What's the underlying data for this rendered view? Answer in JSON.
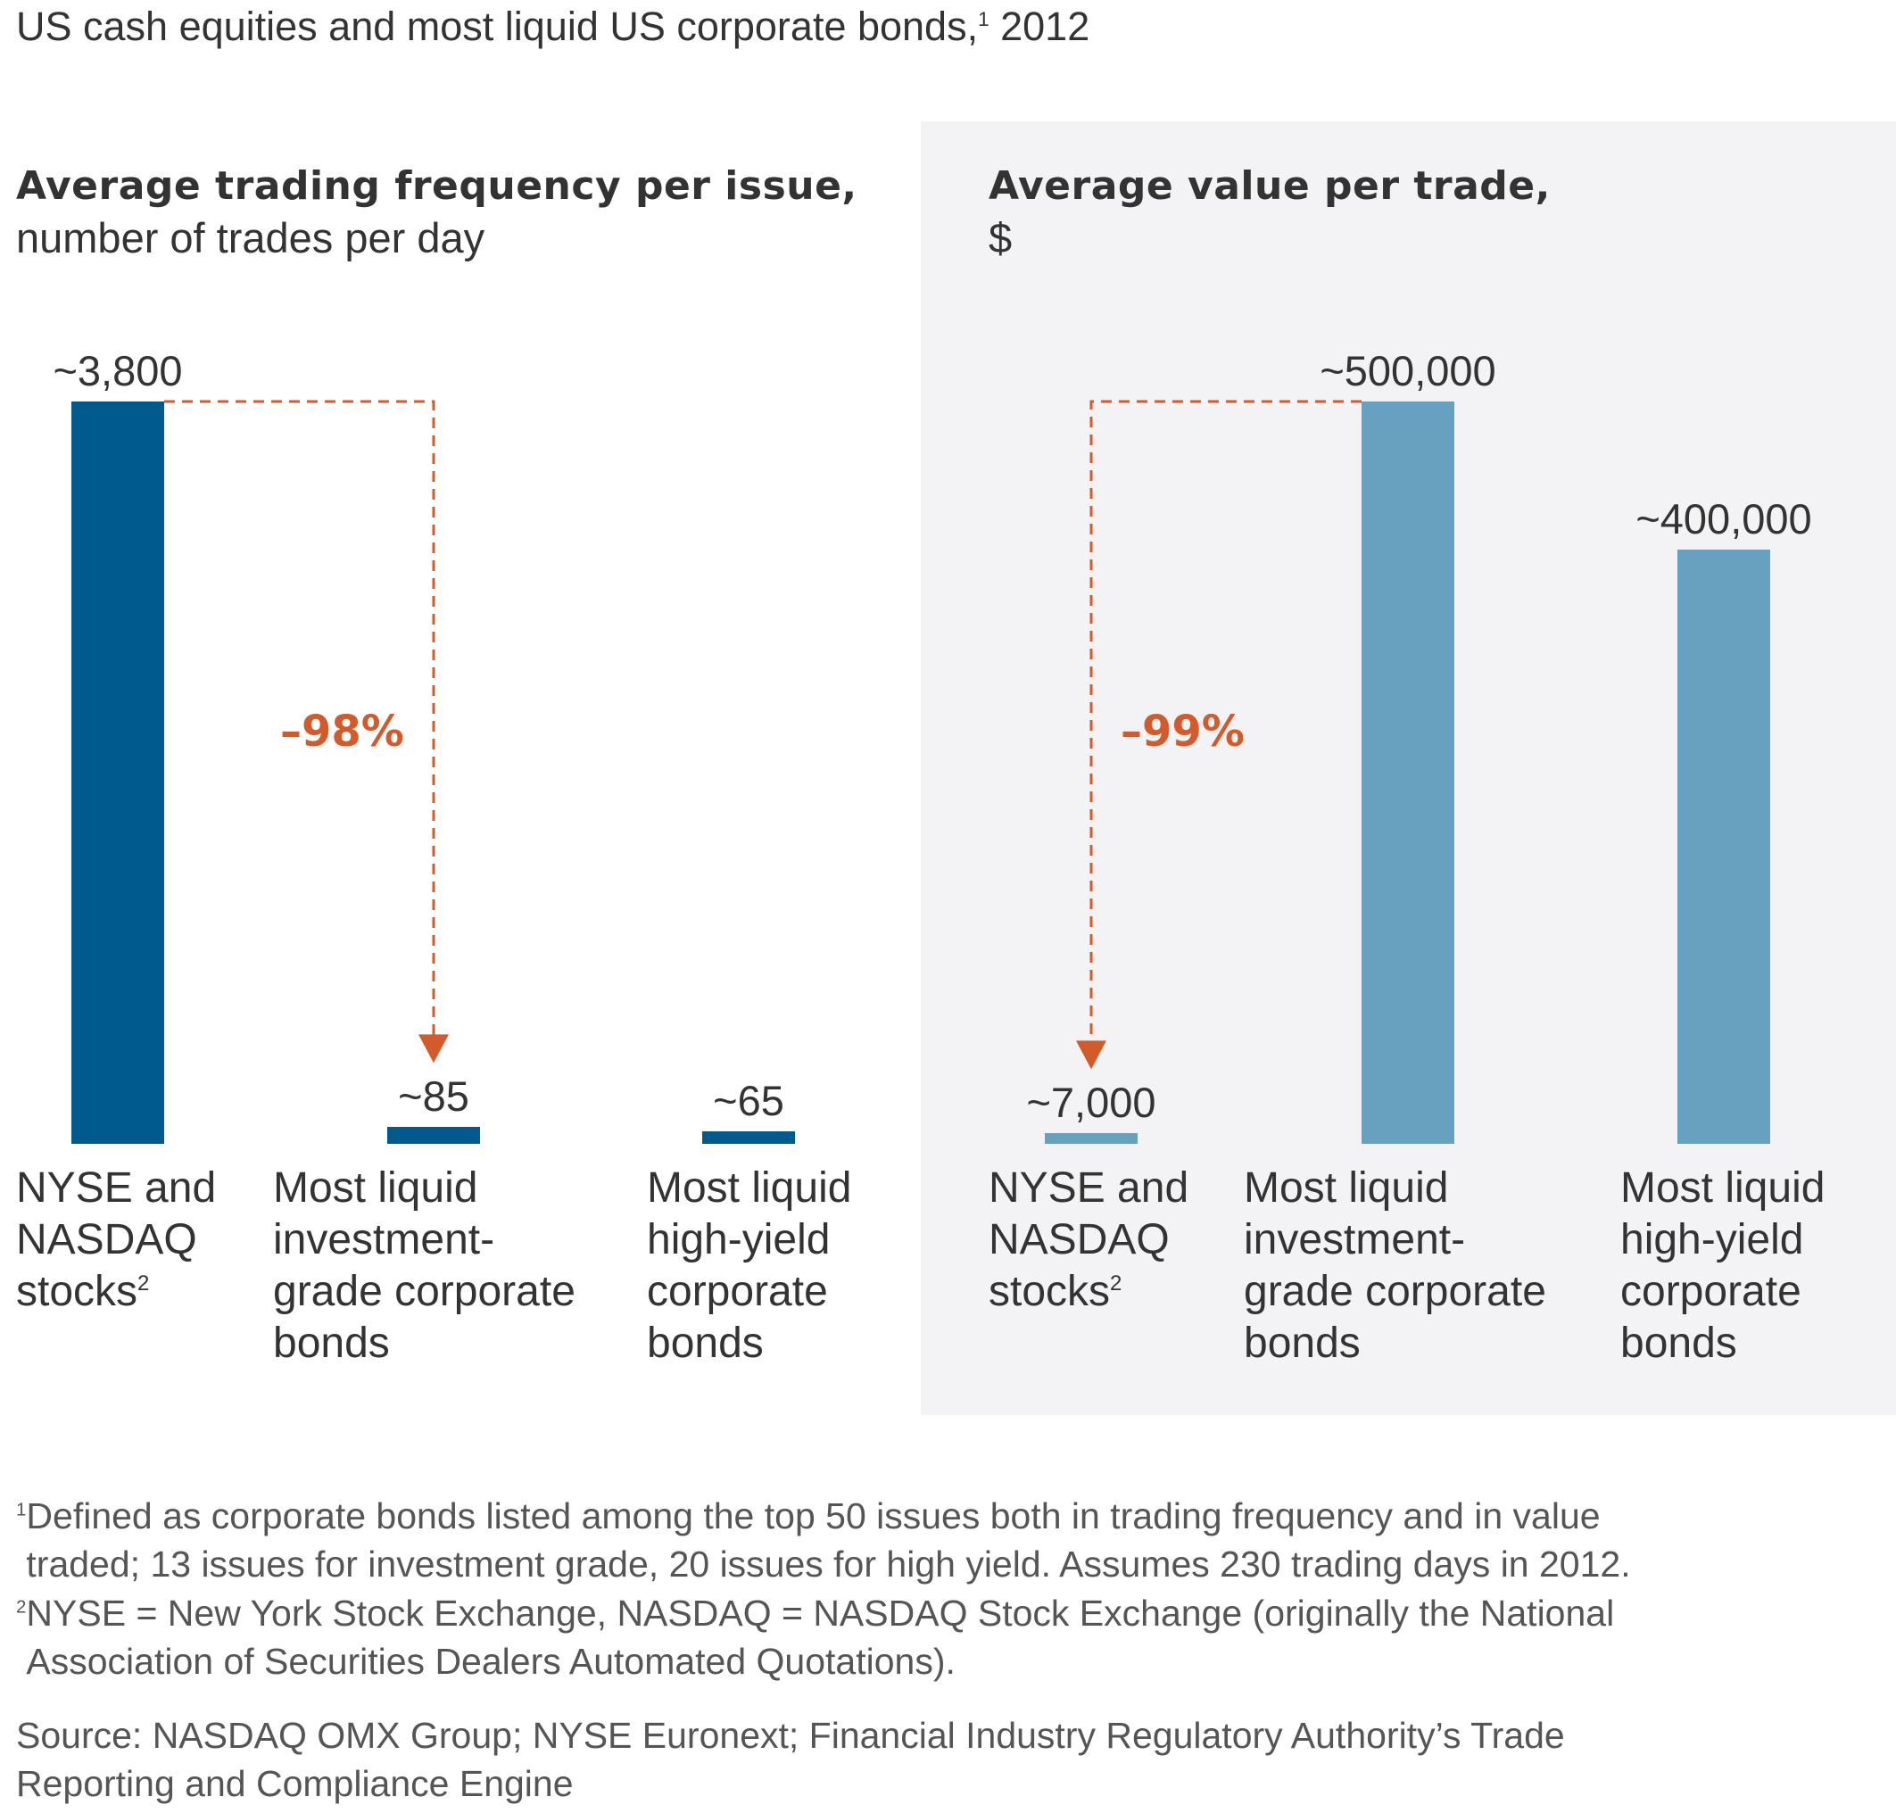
{
  "title": {
    "text": "US cash equities and most liquid US corporate bonds,",
    "footnote_ref": "1",
    "year": "2012"
  },
  "colors": {
    "left_bars": "#005a8c",
    "right_bars": "#67a1c0",
    "annotation": "#d35a2a",
    "panel_bg": "#f3f3f5"
  },
  "chart_data": [
    {
      "type": "bar",
      "title": "Average trading frequency per issue,",
      "subtitle": "number of trades per day",
      "categories": [
        "NYSE and NASDAQ stocks",
        "Most liquid investment-grade corporate bonds",
        "Most liquid high-yield corporate bonds"
      ],
      "category_lines": [
        [
          "NYSE and",
          "NASDAQ",
          "stocks"
        ],
        [
          "Most liquid",
          "investment-",
          "grade corporate",
          "bonds"
        ],
        [
          "Most liquid",
          "high-yield",
          "corporate",
          "bonds"
        ]
      ],
      "category_footnote": "2",
      "values": [
        3800,
        85,
        65
      ],
      "data_labels": [
        "~3,800",
        "~85",
        "~65"
      ],
      "annotation": {
        "text": "–98%",
        "from": 0,
        "to": 1
      },
      "ylim": [
        0,
        3800
      ]
    },
    {
      "type": "bar",
      "title": "Average value per trade,",
      "subtitle": "$",
      "categories": [
        "NYSE and NASDAQ stocks",
        "Most liquid investment-grade corporate bonds",
        "Most liquid high-yield corporate bonds"
      ],
      "category_lines": [
        [
          "NYSE and",
          "NASDAQ",
          "stocks"
        ],
        [
          "Most liquid",
          "investment-",
          "grade corporate",
          "bonds"
        ],
        [
          "Most liquid",
          "high-yield",
          "corporate",
          "bonds"
        ]
      ],
      "category_footnote": "2",
      "values": [
        7000,
        500000,
        400000
      ],
      "data_labels": [
        "~7,000",
        "~500,000",
        "~400,000"
      ],
      "annotation": {
        "text": "–99%",
        "from": 1,
        "to": 0
      },
      "ylim": [
        0,
        500000
      ]
    }
  ],
  "footnotes": [
    {
      "mark": "1",
      "lines": [
        "Defined as corporate bonds listed among the top 50 issues both in trading frequency and in value",
        "traded; 13 issues for investment grade, 20 issues for high yield. Assumes 230 trading days in 2012."
      ]
    },
    {
      "mark": "2",
      "lines": [
        "NYSE = New York Stock Exchange, NASDAQ = NASDAQ Stock Exchange (originally the National",
        "Association of Securities Dealers Automated Quotations)."
      ]
    }
  ],
  "source": [
    "Source: NASDAQ OMX Group; NYSE Euronext; Financial Industry Regulatory Authority’s Trade",
    "Reporting and Compliance Engine"
  ]
}
